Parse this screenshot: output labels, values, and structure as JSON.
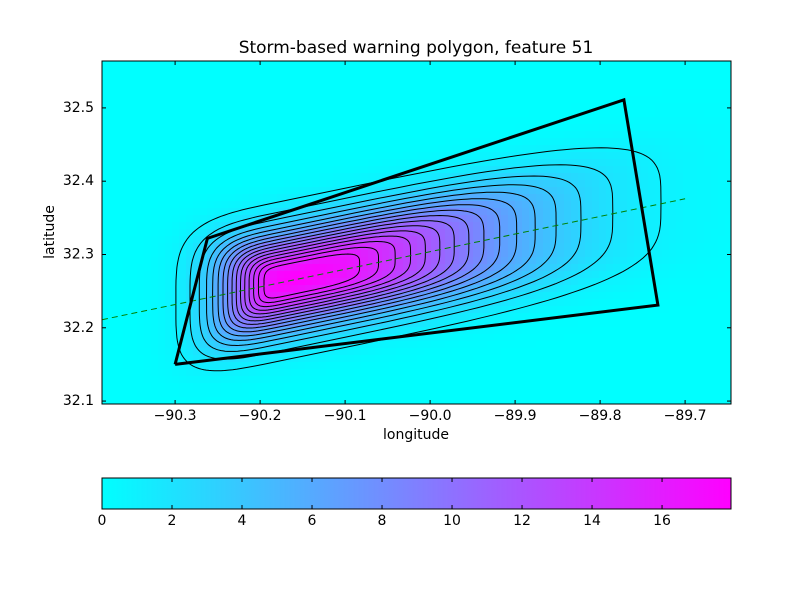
{
  "chart_data": {
    "type": "contour",
    "title": "Storm-based warning polygon, feature 51",
    "x_label": "longitude",
    "y_label": "latitude",
    "xlim": [
      -90.386,
      -89.646
    ],
    "ylim": [
      32.096,
      32.564
    ],
    "xticks": [
      {
        "value": -90.3,
        "label": "−90.3"
      },
      {
        "value": -90.2,
        "label": "−90.2"
      },
      {
        "value": -90.1,
        "label": "−90.1"
      },
      {
        "value": -90.0,
        "label": "−90.0"
      },
      {
        "value": -89.9,
        "label": "−89.9"
      },
      {
        "value": -89.8,
        "label": "−89.8"
      },
      {
        "value": -89.7,
        "label": "−89.7"
      }
    ],
    "yticks": [
      32.1,
      32.2,
      32.3,
      32.4,
      32.5
    ],
    "polygon": {
      "lon": [
        -90.3,
        -90.262,
        -89.772,
        -89.732,
        -90.3
      ],
      "lat": [
        32.15,
        32.322,
        32.511,
        32.231,
        32.15
      ],
      "color": "#000000"
    },
    "track": {
      "lon": [
        -90.386,
        -89.7
      ],
      "lat": [
        32.211,
        32.376
      ],
      "color": "#008000"
    },
    "field": {
      "peak": 17.9,
      "center_lon": -90.17,
      "center_lat": 32.265,
      "slope": 0.24,
      "scale_lon_left": 0.076,
      "scale_lon_right": 0.26,
      "scale_lat": 0.064,
      "levels": [
        1,
        2,
        3,
        4,
        5,
        6,
        7,
        8,
        9,
        10,
        11,
        12,
        13,
        14,
        15,
        16
      ],
      "contour_color": "#000000"
    },
    "colorbar": {
      "clim": [
        0,
        17.97
      ],
      "ticks": [
        0,
        2,
        4,
        6,
        8,
        10,
        12,
        14,
        16
      ],
      "colors": [
        "#00ffff",
        "#ff00ff"
      ]
    }
  }
}
